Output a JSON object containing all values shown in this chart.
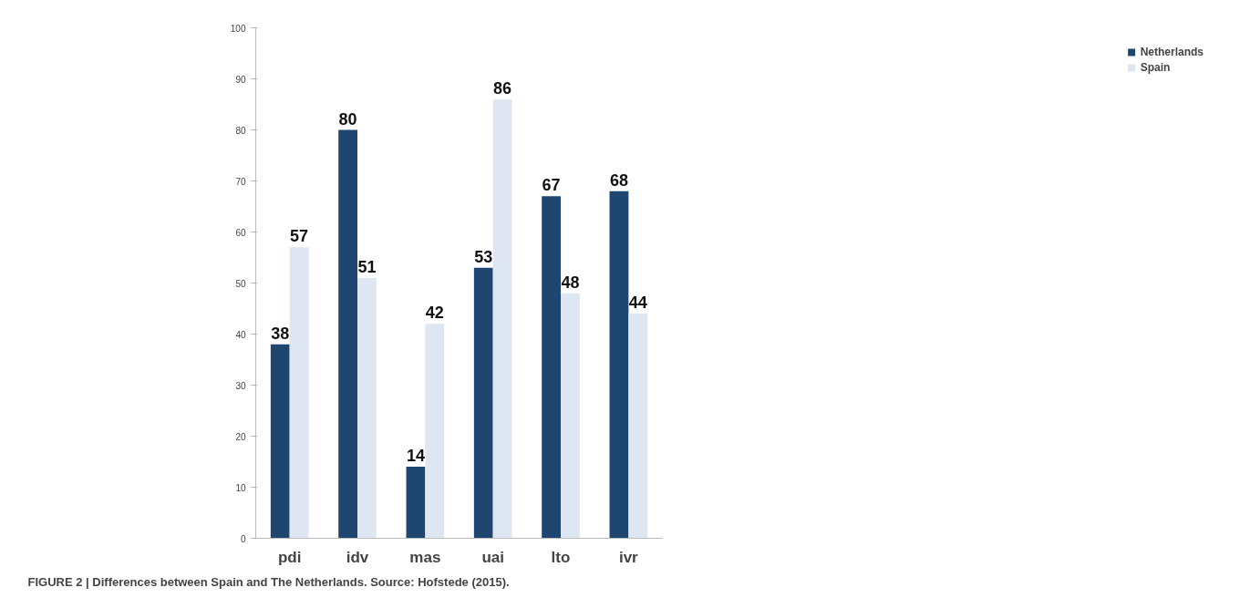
{
  "chart_data": {
    "type": "bar",
    "categories": [
      "pdi",
      "idv",
      "mas",
      "uai",
      "lto",
      "ivr"
    ],
    "series": [
      {
        "name": "Netherlands",
        "color": "#1f4670",
        "values": [
          38,
          80,
          14,
          53,
          67,
          68
        ]
      },
      {
        "name": "Spain",
        "color": "#dde6f1",
        "values": [
          57,
          51,
          42,
          86,
          48,
          44
        ]
      }
    ],
    "ylim": [
      0,
      100
    ],
    "yticks": [
      0,
      10,
      20,
      30,
      40,
      50,
      60,
      70,
      80,
      90,
      100
    ],
    "grid": false,
    "legend": "right",
    "data_labels": true,
    "annotations": [
      "FIGURE 2 | Differences between Spain and The Netherlands. Source: Hofstede (2015)."
    ]
  }
}
